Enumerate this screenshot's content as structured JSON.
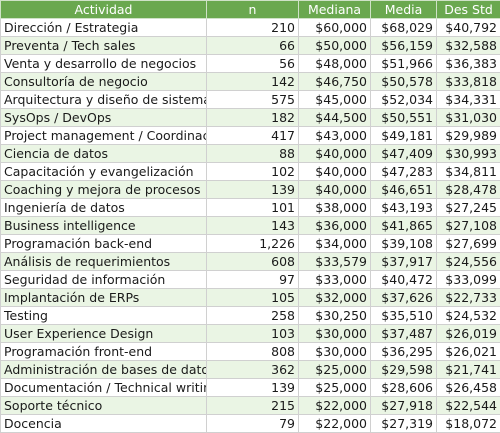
{
  "table": {
    "headers": {
      "actividad": "Actividad",
      "n": "n",
      "mediana": "Mediana",
      "media": "Media",
      "desstd": "Des Std"
    },
    "rows": [
      {
        "actividad": "Dirección / Estrategia",
        "n": "210",
        "mediana": "$60,000",
        "media": "$68,029",
        "desstd": "$40,792"
      },
      {
        "actividad": "Preventa / Tech sales",
        "n": "66",
        "mediana": "$50,000",
        "media": "$56,159",
        "desstd": "$32,588"
      },
      {
        "actividad": "Venta y desarrollo de negocios",
        "n": "56",
        "mediana": "$48,000",
        "media": "$51,966",
        "desstd": "$36,383"
      },
      {
        "actividad": "Consultoría de negocio",
        "n": "142",
        "mediana": "$46,750",
        "media": "$50,578",
        "desstd": "$33,818"
      },
      {
        "actividad": "Arquitectura y diseño de sistemas",
        "n": "575",
        "mediana": "$45,000",
        "media": "$52,034",
        "desstd": "$34,331"
      },
      {
        "actividad": "SysOps / DevOps",
        "n": "182",
        "mediana": "$44,500",
        "media": "$50,551",
        "desstd": "$31,030"
      },
      {
        "actividad": "Project management / Coordinación",
        "n": "417",
        "mediana": "$43,000",
        "media": "$49,181",
        "desstd": "$29,989"
      },
      {
        "actividad": "Ciencia de datos",
        "n": "88",
        "mediana": "$40,000",
        "media": "$47,409",
        "desstd": "$30,993"
      },
      {
        "actividad": "Capacitación y evangelización",
        "n": "102",
        "mediana": "$40,000",
        "media": "$47,283",
        "desstd": "$34,811"
      },
      {
        "actividad": "Coaching y mejora de procesos",
        "n": "139",
        "mediana": "$40,000",
        "media": "$46,651",
        "desstd": "$28,478"
      },
      {
        "actividad": "Ingeniería de datos",
        "n": "101",
        "mediana": "$38,000",
        "media": "$43,193",
        "desstd": "$27,245"
      },
      {
        "actividad": "Business intelligence",
        "n": "143",
        "mediana": "$36,000",
        "media": "$41,865",
        "desstd": "$27,108"
      },
      {
        "actividad": "Programación back-end",
        "n": "1,226",
        "mediana": "$34,000",
        "media": "$39,108",
        "desstd": "$27,699"
      },
      {
        "actividad": "Análisis de requerimientos",
        "n": "608",
        "mediana": "$33,579",
        "media": "$37,917",
        "desstd": "$24,556"
      },
      {
        "actividad": "Seguridad de información",
        "n": "97",
        "mediana": "$33,000",
        "media": "$40,472",
        "desstd": "$33,099"
      },
      {
        "actividad": "Implantación de ERPs",
        "n": "105",
        "mediana": "$32,000",
        "media": "$37,626",
        "desstd": "$22,733"
      },
      {
        "actividad": "Testing",
        "n": "258",
        "mediana": "$30,250",
        "media": "$35,510",
        "desstd": "$24,532"
      },
      {
        "actividad": "User Experience Design",
        "n": "103",
        "mediana": "$30,000",
        "media": "$37,487",
        "desstd": "$26,019"
      },
      {
        "actividad": "Programación front-end",
        "n": "808",
        "mediana": "$30,000",
        "media": "$36,295",
        "desstd": "$26,021"
      },
      {
        "actividad": "Administración de bases de datos",
        "n": "362",
        "mediana": "$25,000",
        "media": "$29,598",
        "desstd": "$21,741"
      },
      {
        "actividad": "Documentación / Technical writing",
        "n": "139",
        "mediana": "$25,000",
        "media": "$28,606",
        "desstd": "$26,458"
      },
      {
        "actividad": "Soporte técnico",
        "n": "215",
        "mediana": "$22,000",
        "media": "$27,918",
        "desstd": "$22,544"
      },
      {
        "actividad": "Docencia",
        "n": "79",
        "mediana": "$22,000",
        "media": "$27,319",
        "desstd": "$18,072"
      }
    ]
  },
  "colors": {
    "header_bg": "#6aa84f",
    "header_text": "#ffffff",
    "stripe_bg": "#eaf5e4"
  }
}
